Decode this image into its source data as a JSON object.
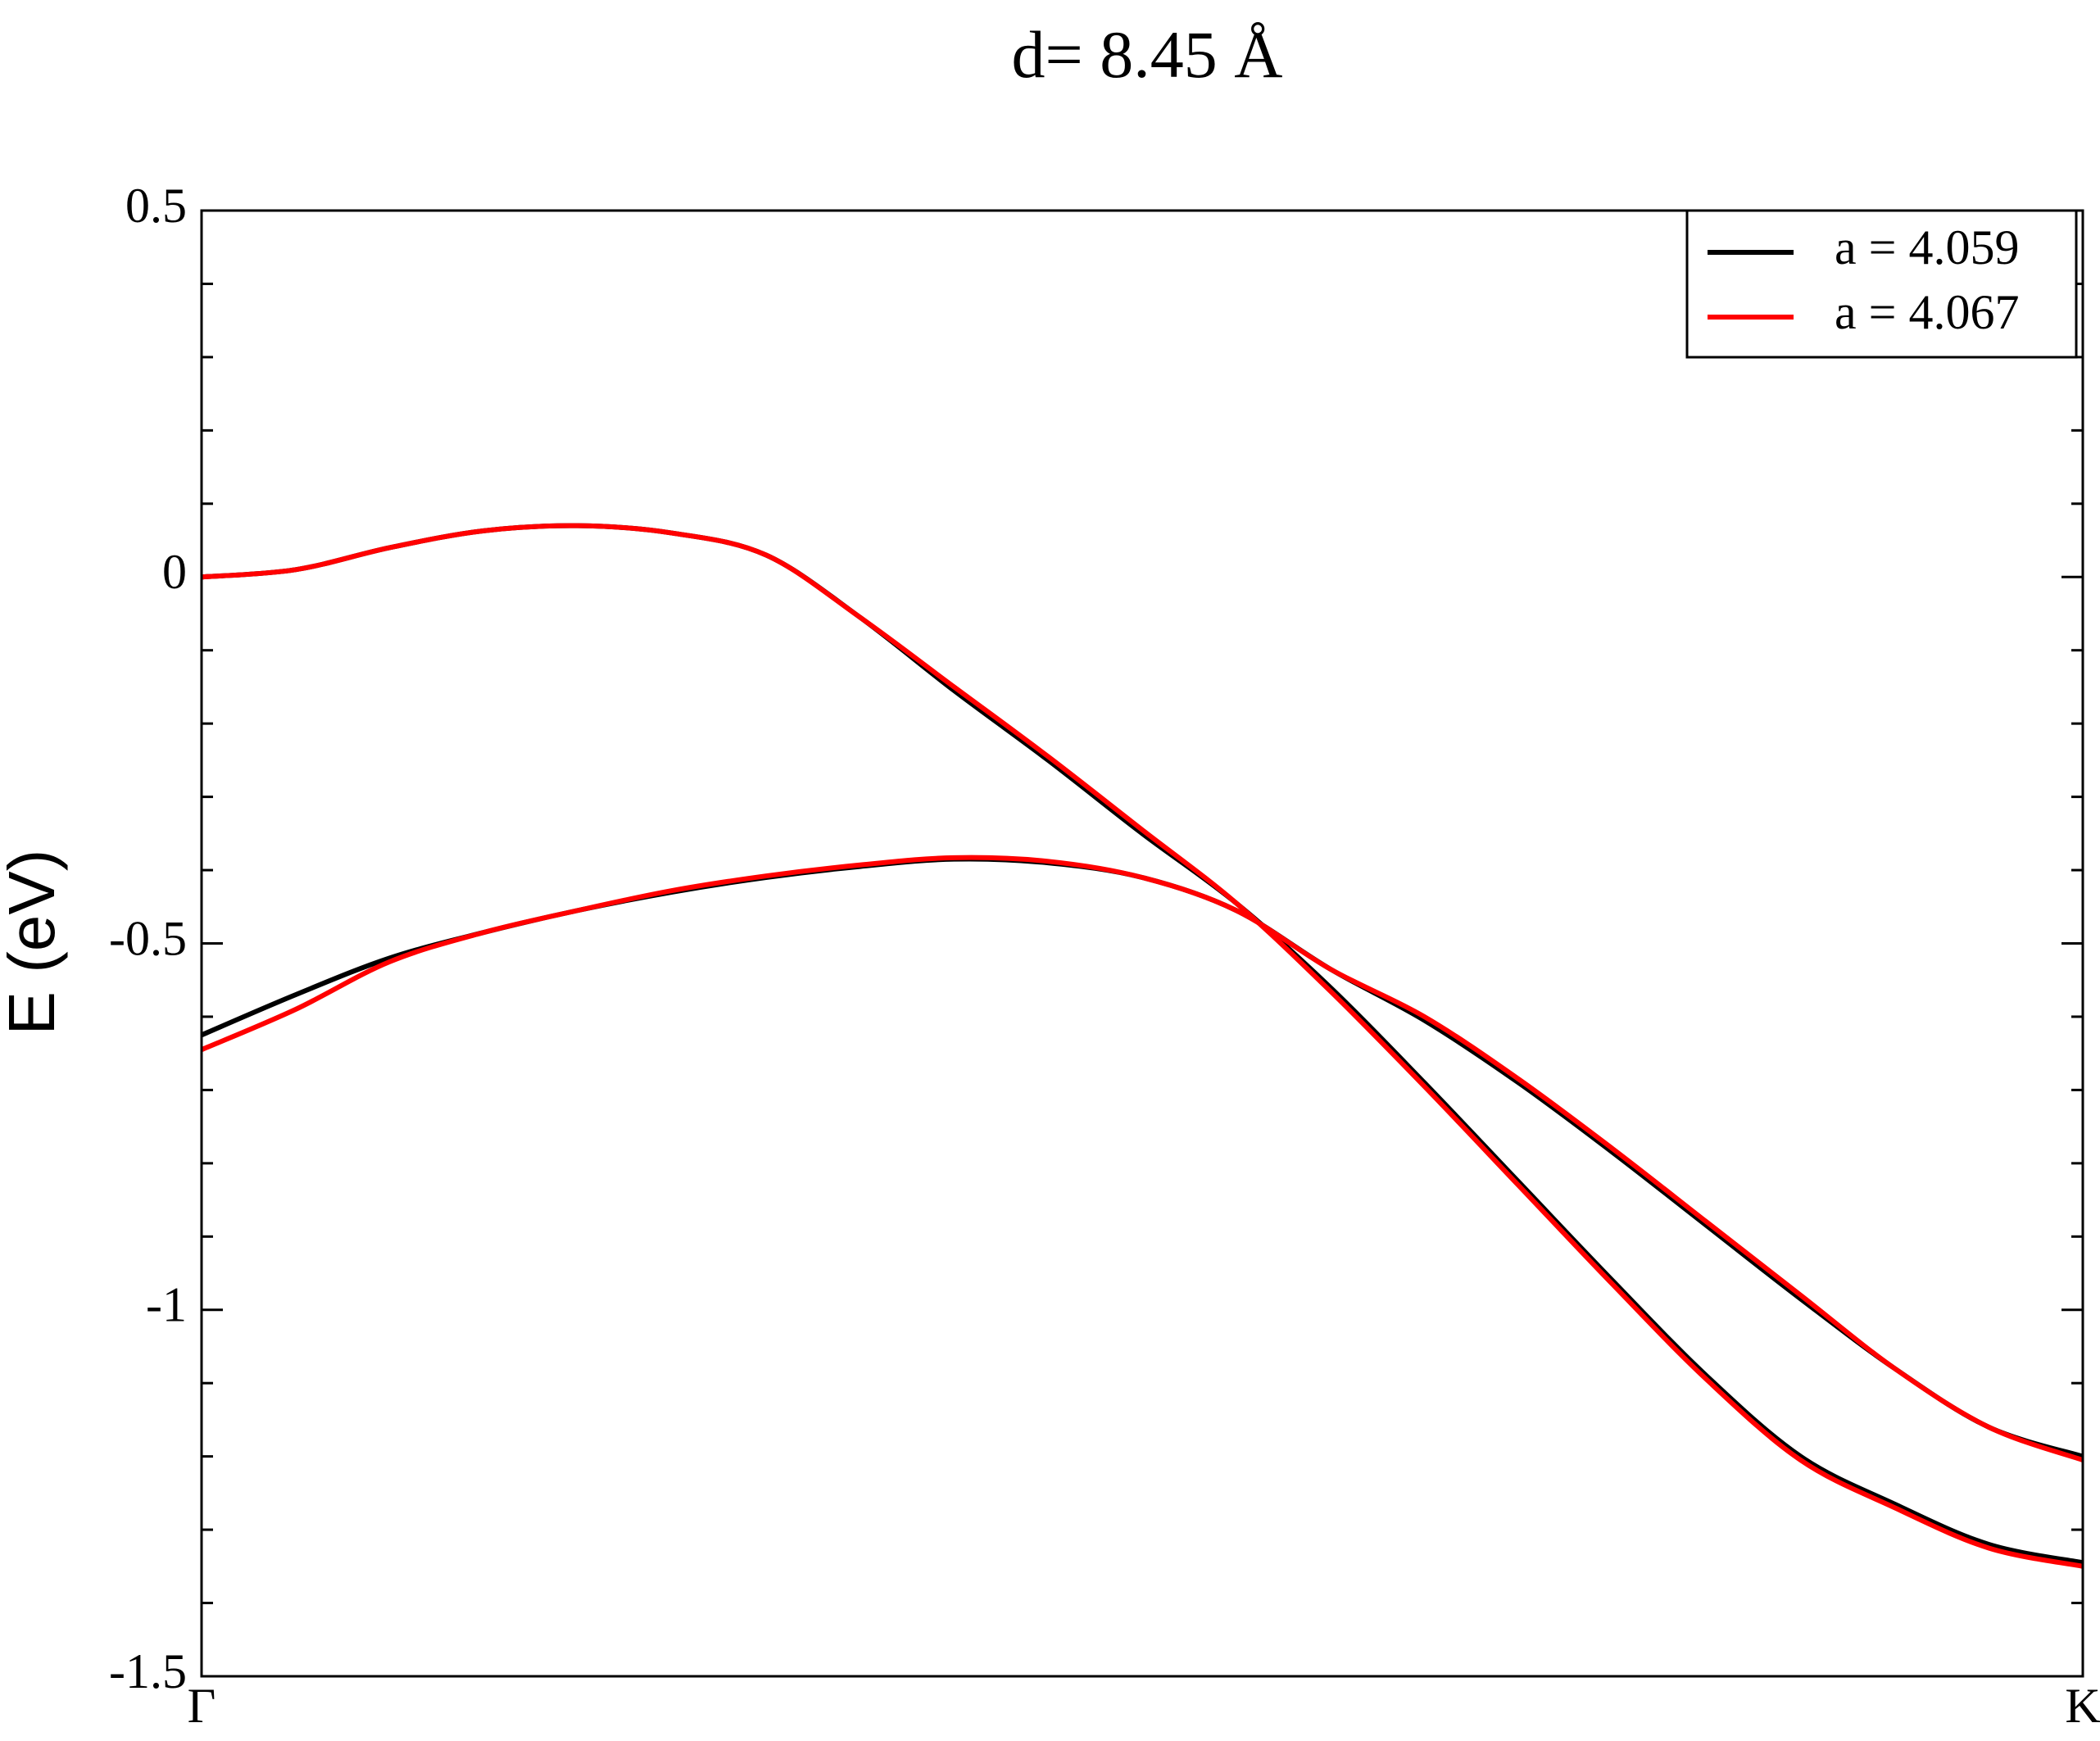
{
  "chart_data": {
    "type": "line",
    "title": "d= 8.45 Å",
    "ylabel": "E (eV)",
    "x": [
      0,
      0.05,
      0.1,
      0.15,
      0.2,
      0.25,
      0.3,
      0.35,
      0.4,
      0.45,
      0.5,
      0.55,
      0.6,
      0.65,
      0.7,
      0.75,
      0.8,
      0.85,
      0.9,
      0.95,
      1
    ],
    "xlim": [
      0,
      1
    ],
    "xticks": [
      {
        "value": 0,
        "label": "Γ"
      },
      {
        "value": 1,
        "label": "K"
      }
    ],
    "ylim": [
      -1.5,
      0.5
    ],
    "yticks": [
      -1.5,
      -1,
      -0.5,
      0,
      0.5
    ],
    "legend": "upper right",
    "series": [
      {
        "name": "a = 4.059",
        "color": "#000000",
        "bands": [
          [
            0,
            0.01,
            0.04,
            0.063,
            0.07,
            0.06,
            0.03,
            -0.055,
            -0.155,
            -0.25,
            -0.35,
            -0.445,
            -0.56,
            -0.69,
            -0.825,
            -0.96,
            -1.09,
            -1.2,
            -1.265,
            -1.32,
            -1.345
          ],
          [
            -0.625,
            -0.57,
            -0.52,
            -0.485,
            -0.455,
            -0.43,
            -0.41,
            -0.395,
            -0.385,
            -0.39,
            -0.41,
            -0.455,
            -0.535,
            -0.605,
            -0.69,
            -0.785,
            -0.885,
            -0.985,
            -1.08,
            -1.16,
            -1.2
          ]
        ]
      },
      {
        "name": "a = 4.067",
        "color": "#ff0000",
        "bands": [
          [
            0,
            0.01,
            0.04,
            0.063,
            0.07,
            0.06,
            0.03,
            -0.055,
            -0.15,
            -0.245,
            -0.345,
            -0.445,
            -0.565,
            -0.695,
            -0.83,
            -0.965,
            -1.095,
            -1.205,
            -1.27,
            -1.325,
            -1.35
          ],
          [
            -0.645,
            -0.59,
            -0.525,
            -0.485,
            -0.455,
            -0.428,
            -0.408,
            -0.393,
            -0.383,
            -0.388,
            -0.41,
            -0.455,
            -0.535,
            -0.6,
            -0.685,
            -0.78,
            -0.88,
            -0.98,
            -1.08,
            -1.16,
            -1.205
          ]
        ]
      }
    ]
  }
}
